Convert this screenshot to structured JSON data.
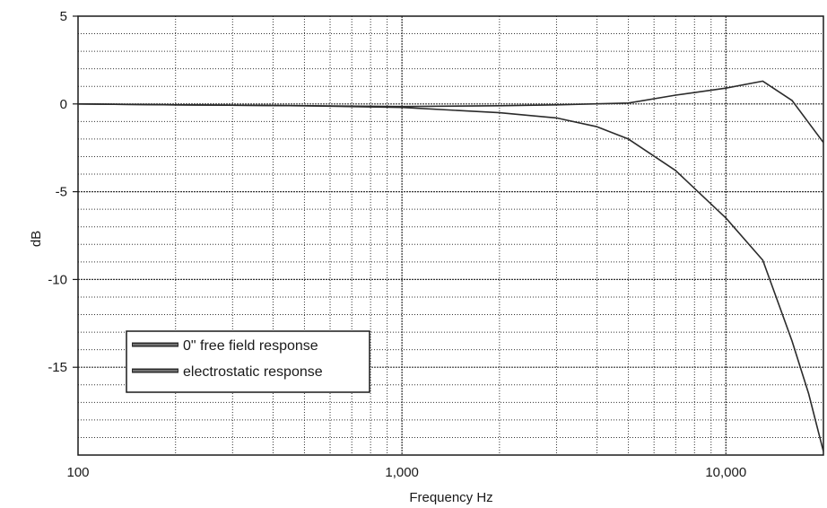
{
  "chart_data": {
    "type": "line",
    "title": "",
    "xlabel": "Frequency Hz",
    "ylabel": "dB",
    "xscale": "log",
    "xlim": [
      100,
      20000
    ],
    "ylim": [
      -20,
      5
    ],
    "grid": true,
    "x_ticks": [
      {
        "value": 100,
        "label": "100"
      },
      {
        "value": 1000,
        "label": "1,000"
      },
      {
        "value": 10000,
        "label": "10,000"
      }
    ],
    "y_ticks": [
      {
        "value": 5,
        "label": "5"
      },
      {
        "value": 0,
        "label": "0"
      },
      {
        "value": -5,
        "label": "-5"
      },
      {
        "value": -10,
        "label": "-10"
      },
      {
        "value": -15,
        "label": "-15"
      }
    ],
    "legend_position": "lower-left",
    "colors": {
      "lines": "#2b2b2b",
      "grid": "#333333",
      "background": "#ffffff"
    },
    "series": [
      {
        "name": "0\" free field response",
        "x": [
          100,
          200,
          500,
          1000,
          2000,
          3000,
          5000,
          7000,
          10000,
          13000,
          16000,
          20000
        ],
        "y": [
          0,
          -0.05,
          -0.1,
          -0.15,
          -0.1,
          -0.05,
          0.05,
          0.5,
          0.9,
          1.3,
          0.2,
          -2.2
        ]
      },
      {
        "name": "electrostatic response",
        "x": [
          100,
          200,
          500,
          1000,
          2000,
          3000,
          4000,
          5000,
          7000,
          10000,
          13000,
          16000,
          18000,
          20000
        ],
        "y": [
          0,
          -0.05,
          -0.1,
          -0.2,
          -0.5,
          -0.8,
          -1.3,
          -2.0,
          -3.8,
          -6.5,
          -8.9,
          -13.5,
          -16.5,
          -19.8
        ]
      }
    ]
  }
}
